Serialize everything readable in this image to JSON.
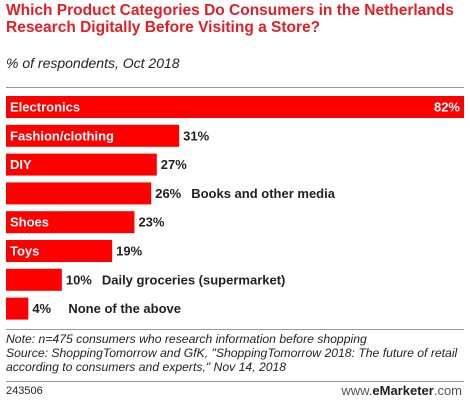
{
  "header": {
    "title": "Which Product Categories Do Consumers in the Netherlands Research Digitally Before Visiting a Store?",
    "subtitle": "% of respondents, Oct 2018"
  },
  "chart_data": {
    "type": "bar",
    "orientation": "horizontal",
    "categories": [
      "Electronics",
      "Fashion/clothing",
      "DIY",
      "Books and other media",
      "Shoes",
      "Toys",
      "Daily groceries (supermarket)",
      "None of the above"
    ],
    "values": [
      82,
      31,
      27,
      26,
      23,
      19,
      10,
      4
    ],
    "value_labels": [
      "82%",
      "31%",
      "27%",
      "26%",
      "23%",
      "19%",
      "10%",
      "4%"
    ],
    "label_positions": [
      "inside",
      "inside",
      "inside",
      "outside",
      "inside",
      "inside",
      "outside",
      "outside"
    ],
    "bar_color": "#ff0000",
    "xlim": [
      0,
      82
    ],
    "grid": false,
    "legend": "none"
  },
  "footer": {
    "note": "Note: n=475 consumers who research information before shopping",
    "source": "Source: ShoppingTomorrow and GfK, \"ShoppingTomorrow 2018: The future of retail according to consumers and experts,\" Nov 14, 2018",
    "chart_id": "243506",
    "brand_prefix": "www.",
    "brand_name": "eMarketer",
    "brand_suffix": ".com"
  }
}
